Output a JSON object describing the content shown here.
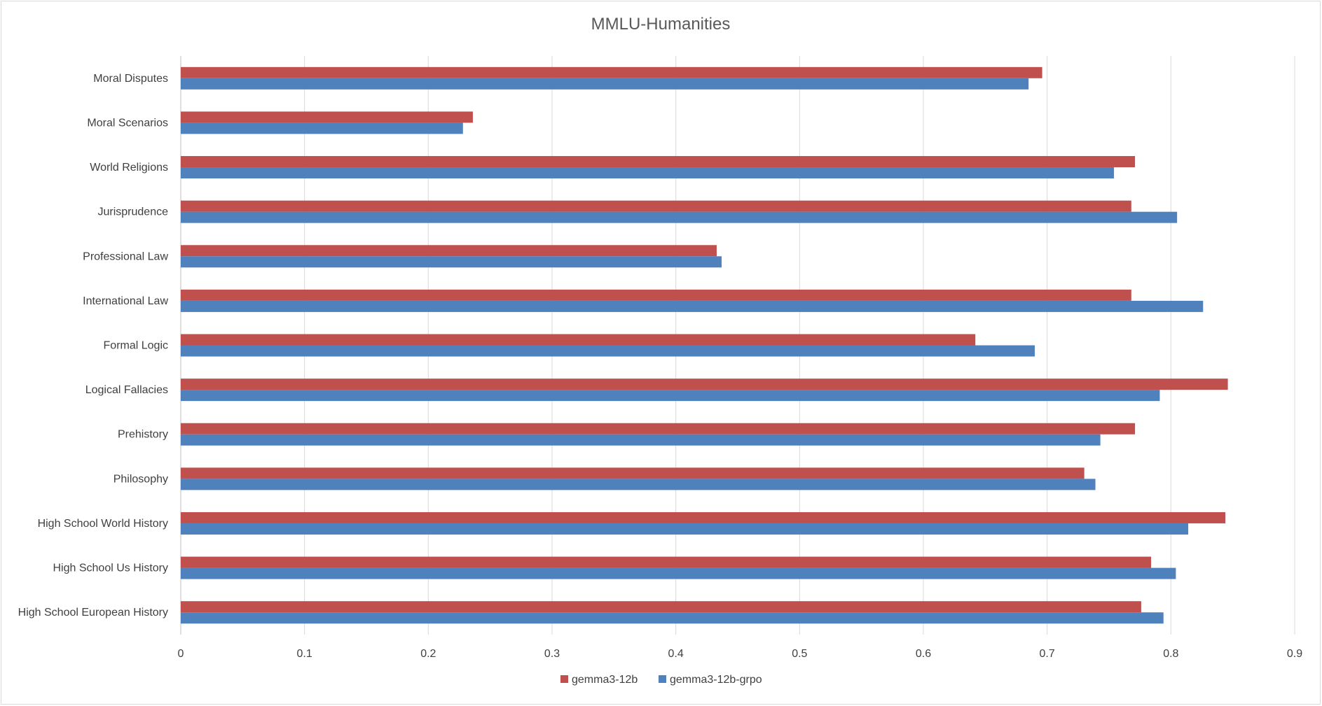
{
  "chart_data": {
    "type": "bar",
    "orientation": "horizontal",
    "title": "MMLU-Humanities",
    "categories": [
      "Moral Disputes",
      "Moral Scenarios",
      "World Religions",
      "Jurisprudence",
      "Professional Law",
      "International Law",
      "Formal Logic",
      "Logical Fallacies",
      "Prehistory",
      "Philosophy",
      "High School World History",
      "High School Us History",
      "High School European History"
    ],
    "series": [
      {
        "name": "gemma3-12b",
        "color": "#C0504D",
        "values": [
          0.696,
          0.236,
          0.771,
          0.768,
          0.433,
          0.768,
          0.642,
          0.846,
          0.771,
          0.73,
          0.844,
          0.784,
          0.776
        ]
      },
      {
        "name": "gemma3-12b-grpo",
        "color": "#4F81BD",
        "values": [
          0.685,
          0.228,
          0.754,
          0.805,
          0.437,
          0.826,
          0.69,
          0.791,
          0.743,
          0.739,
          0.814,
          0.804,
          0.794
        ]
      }
    ],
    "xlim": [
      0,
      0.9
    ],
    "xticks": [
      "0",
      "0.1",
      "0.2",
      "0.3",
      "0.4",
      "0.5",
      "0.6",
      "0.7",
      "0.8",
      "0.9"
    ],
    "xlabel": "",
    "ylabel": "",
    "grid": "vertical",
    "legend_position": "bottom"
  }
}
